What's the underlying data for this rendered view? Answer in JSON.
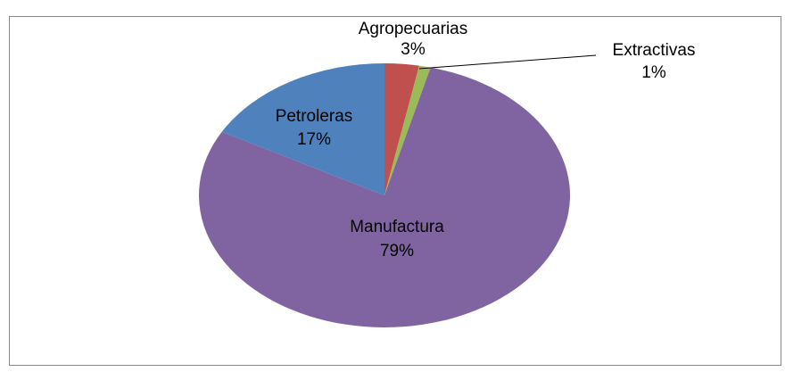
{
  "chart_data": {
    "type": "pie",
    "categories": [
      "Agropecuarias",
      "Extractivas",
      "Manufactura",
      "Petroleras"
    ],
    "values": [
      3,
      1,
      79,
      17
    ],
    "value_labels": [
      "3%",
      "1%",
      "79%",
      "17%"
    ],
    "colors": [
      "#c0504d",
      "#9bbb59",
      "#8064a2",
      "#4f81bd"
    ]
  }
}
